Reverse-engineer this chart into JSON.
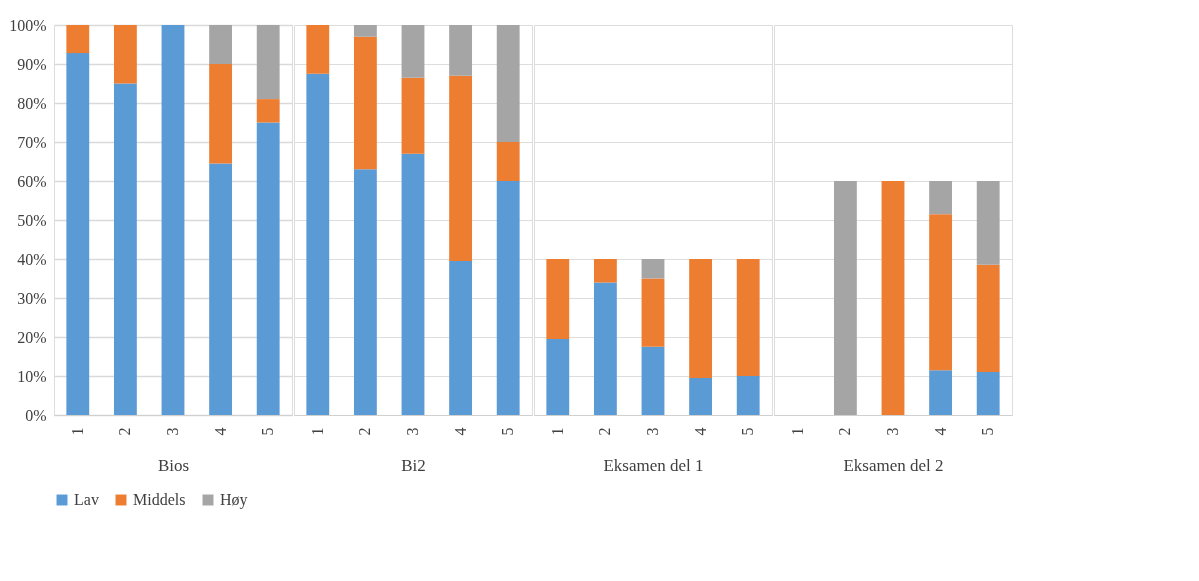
{
  "chart_data": [
    {
      "type": "bar",
      "stacked": true,
      "xlabel": "Bios",
      "categories": [
        "1",
        "2",
        "3",
        "4",
        "5"
      ],
      "ylim": [
        0,
        100
      ],
      "grid": "y",
      "legend": "bottom",
      "yticks": [
        {
          "value": 0,
          "label": "0%"
        },
        {
          "value": 10,
          "label": "10%"
        },
        {
          "value": 20,
          "label": "20%"
        },
        {
          "value": 30,
          "label": "30%"
        },
        {
          "value": 40,
          "label": "40%"
        },
        {
          "value": 50,
          "label": "50%"
        },
        {
          "value": 60,
          "label": "60%"
        },
        {
          "value": 70,
          "label": "70%"
        },
        {
          "value": 80,
          "label": "80%"
        },
        {
          "value": 90,
          "label": "90%"
        },
        {
          "value": 100,
          "label": "100%"
        }
      ],
      "series": [
        {
          "name": "Lav",
          "color": "#5b9bd5",
          "values": [
            92.8,
            85,
            100,
            64.5,
            75
          ]
        },
        {
          "name": "Middels",
          "color": "#ed7d31",
          "values": [
            7.2,
            15,
            0,
            25.5,
            6
          ]
        },
        {
          "name": "Høy",
          "color": "#a5a5a5",
          "values": [
            0,
            0,
            0,
            10,
            19
          ]
        }
      ]
    },
    {
      "type": "bar",
      "stacked": true,
      "xlabel": "Bi2",
      "categories": [
        "1",
        "2",
        "3",
        "4",
        "5"
      ],
      "ylim": [
        0,
        100
      ],
      "grid": "y",
      "tick_labels": "x",
      "series": [
        {
          "name": "Lav",
          "color": "#5b9bd5",
          "values": [
            87.5,
            63,
            67,
            39.5,
            60
          ]
        },
        {
          "name": "Middels",
          "color": "#ed7d31",
          "values": [
            12.5,
            34,
            19.5,
            47.5,
            10
          ]
        },
        {
          "name": "Høy",
          "color": "#a5a5a5",
          "values": [
            0,
            3,
            13.5,
            13,
            30
          ]
        }
      ]
    },
    {
      "type": "bar",
      "stacked": true,
      "xlabel": "Eksamen del 1",
      "categories": [
        "1",
        "2",
        "3",
        "4",
        "5"
      ],
      "ylim": [
        0,
        100
      ],
      "grid": "y",
      "tick_labels": "x",
      "series": [
        {
          "name": "Lav",
          "color": "#5b9bd5",
          "values": [
            19.5,
            34,
            17.5,
            9.5,
            10
          ]
        },
        {
          "name": "Middels",
          "color": "#ed7d31",
          "values": [
            20.5,
            6,
            17.5,
            30.5,
            30
          ]
        },
        {
          "name": "Høy",
          "color": "#a5a5a5",
          "values": [
            0,
            0,
            5,
            0,
            0
          ]
        }
      ]
    },
    {
      "type": "bar",
      "stacked": true,
      "xlabel": "Eksamen del 2",
      "categories": [
        "1",
        "2",
        "3",
        "4",
        "5"
      ],
      "ylim": [
        0,
        100
      ],
      "grid": "y",
      "tick_labels": "x",
      "series": [
        {
          "name": "Lav",
          "color": "#5b9bd5",
          "values": [
            0,
            0,
            0,
            11.5,
            11
          ]
        },
        {
          "name": "Middels",
          "color": "#ed7d31",
          "values": [
            0,
            0,
            60,
            40,
            27.5
          ]
        },
        {
          "name": "Høy",
          "color": "#a5a5a5",
          "values": [
            0,
            60,
            0,
            8.5,
            21.5
          ]
        }
      ]
    }
  ]
}
